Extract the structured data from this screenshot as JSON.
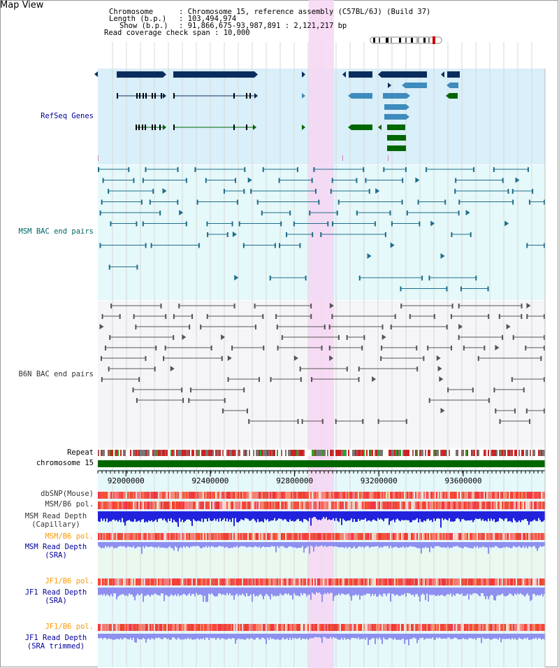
{
  "header": {
    "title": "Map View",
    "info": [
      {
        "key": "Chromosome",
        "value": "Chromosome 15, reference assembly (C57BL/6J) (Build 37)"
      },
      {
        "key": "Length (b.p.)",
        "value": "103,494,974"
      },
      {
        "key": "Show (b.p.)",
        "value": "91,866,675-93,987,891 : 2,121,217 bp"
      },
      {
        "key": "Read coverage check span",
        "value": "10,000"
      }
    ]
  },
  "tracks": {
    "refseq": "RefSeq Genes",
    "msm_bac": "MSM BAC end pairs",
    "b6n_bac": "B6N BAC end pairs",
    "repeat": "Repeat",
    "chromosome": "chromosome 15",
    "dbsnp": "dbSNP(Mouse)",
    "msm_b6_pol": "MSM/B6 pol.",
    "msm_depth_cap_1": "MSM Read Depth",
    "msm_depth_cap_2": "(Capillary)",
    "msm_b6_pol_2": "MSM/B6 pol.",
    "msm_depth_sra_1": "MSM Read Depth",
    "msm_depth_sra_2": "(SRA)",
    "jf1_pol_1": "JF1/B6 pol.",
    "jf1_depth_sra_1": "JF1 Read Depth",
    "jf1_depth_sra_2": "(SRA)",
    "jf1_pol_2": "JF1/B6 pol.",
    "jf1_depth_trim_1": "JF1 Read Depth",
    "jf1_depth_trim_2": "(SRA trimmed)"
  },
  "axis": {
    "ticks": [
      "92000000",
      "92400000",
      "92800000",
      "93200000",
      "93600000"
    ],
    "range_bp": [
      91866675,
      93987891
    ]
  },
  "highlight": {
    "start_bp": 92866675,
    "end_bp": 92986675
  },
  "colors": {
    "refseq_bg": "#d9eff9",
    "msm_bg": "#e5f8fa",
    "b6n_bg": "#f5f5f7",
    "gene_dark": "#0b2d5e",
    "gene_mid": "#3f8bbd",
    "gene_green": "#006600",
    "bac_msm": "#1f6e8a",
    "bac_b6n": "#555555",
    "highlight": "#f7d6f3",
    "pol_red": "#e8443a",
    "depth_blue": "#2222dd",
    "depth_lavender": "#8f8ff0",
    "label_blue": "#000099",
    "label_teal": "#006666",
    "label_gray": "#333333",
    "label_orange": "#ff9900"
  }
}
